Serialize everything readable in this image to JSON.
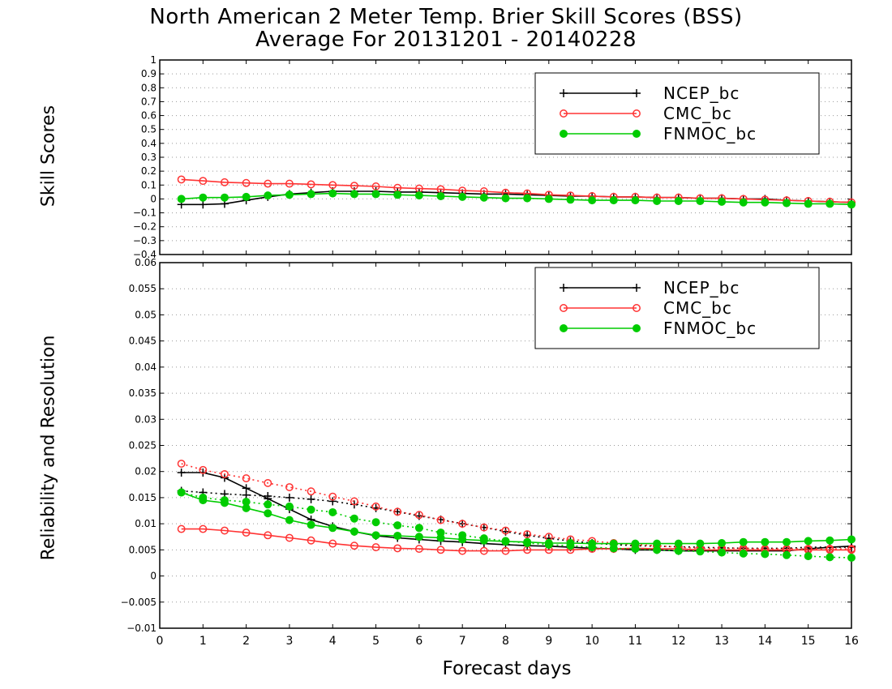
{
  "title_line1": "North American 2 Meter Temp. Brier Skill Scores (BSS)",
  "title_line2": "Average For 20131201 - 20140228",
  "xlabel": "Forecast days",
  "chart_data": [
    {
      "type": "line",
      "ylabel": "Skill Scores",
      "xlim": [
        0,
        16
      ],
      "ylim": [
        -0.4,
        1
      ],
      "grid": true,
      "legend_position": "top-right",
      "x_ticks": [
        0,
        1,
        2,
        3,
        4,
        5,
        6,
        7,
        8,
        9,
        10,
        11,
        12,
        13,
        14,
        15,
        16
      ],
      "y_ticks": [
        -0.4,
        -0.3,
        -0.2,
        -0.1,
        0,
        0.1,
        0.2,
        0.3,
        0.4,
        0.5,
        0.6,
        0.7,
        0.8,
        0.9,
        1
      ],
      "x": [
        0.5,
        1,
        1.5,
        2,
        2.5,
        3,
        3.5,
        4,
        4.5,
        5,
        5.5,
        6,
        6.5,
        7,
        7.5,
        8,
        8.5,
        9,
        9.5,
        10,
        10.5,
        11,
        11.5,
        12,
        12.5,
        13,
        13.5,
        14,
        14.5,
        15,
        15.5,
        16
      ],
      "series": [
        {
          "name": "NCEP_bc",
          "color": "#000000",
          "marker": "plus",
          "values": [
            -0.04,
            -0.04,
            -0.035,
            -0.01,
            0.015,
            0.035,
            0.045,
            0.055,
            0.055,
            0.055,
            0.05,
            0.05,
            0.045,
            0.04,
            0.035,
            0.035,
            0.03,
            0.025,
            0.02,
            0.02,
            0.015,
            0.015,
            0.01,
            0.01,
            0.005,
            0.005,
            0.0,
            0.0,
            -0.01,
            -0.015,
            -0.02,
            -0.025
          ]
        },
        {
          "name": "CMC_bc",
          "color": "#ff3333",
          "marker": "open-circle",
          "values": [
            0.14,
            0.13,
            0.12,
            0.115,
            0.11,
            0.11,
            0.105,
            0.1,
            0.095,
            0.09,
            0.08,
            0.075,
            0.07,
            0.06,
            0.055,
            0.045,
            0.04,
            0.03,
            0.025,
            0.02,
            0.015,
            0.015,
            0.01,
            0.01,
            0.005,
            0.005,
            0.0,
            -0.005,
            -0.01,
            -0.015,
            -0.02,
            -0.025
          ]
        },
        {
          "name": "FNMOC_bc",
          "color": "#00cc00",
          "marker": "filled-circle",
          "values": [
            0.0,
            0.01,
            0.01,
            0.015,
            0.025,
            0.03,
            0.035,
            0.04,
            0.035,
            0.035,
            0.03,
            0.025,
            0.02,
            0.015,
            0.01,
            0.005,
            0.005,
            0.0,
            -0.005,
            -0.01,
            -0.01,
            -0.01,
            -0.015,
            -0.015,
            -0.015,
            -0.02,
            -0.025,
            -0.025,
            -0.03,
            -0.035,
            -0.035,
            -0.04
          ]
        }
      ]
    },
    {
      "type": "line",
      "ylabel": "Reliability and Resolution",
      "xlim": [
        0,
        16
      ],
      "ylim": [
        -0.01,
        0.06
      ],
      "grid": true,
      "legend_position": "top-right",
      "x_ticks": [
        0,
        1,
        2,
        3,
        4,
        5,
        6,
        7,
        8,
        9,
        10,
        11,
        12,
        13,
        14,
        15,
        16
      ],
      "y_ticks": [
        -0.01,
        -0.005,
        0,
        0.005,
        0.01,
        0.015,
        0.02,
        0.025,
        0.03,
        0.035,
        0.04,
        0.045,
        0.05,
        0.055,
        0.06
      ],
      "x": [
        0.5,
        1,
        1.5,
        2,
        2.5,
        3,
        3.5,
        4,
        4.5,
        5,
        5.5,
        6,
        6.5,
        7,
        7.5,
        8,
        8.5,
        9,
        9.5,
        10,
        10.5,
        11,
        11.5,
        12,
        12.5,
        13,
        13.5,
        14,
        14.5,
        15,
        15.5,
        16
      ],
      "series": [
        {
          "name": "NCEP_bc",
          "color": "#000000",
          "marker": "plus",
          "dash": "solid",
          "values": [
            0.0198,
            0.0198,
            0.0188,
            0.0168,
            0.0148,
            0.0128,
            0.0108,
            0.0095,
            0.0085,
            0.0077,
            0.0073,
            0.007,
            0.0067,
            0.0065,
            0.0062,
            0.006,
            0.0058,
            0.0057,
            0.0055,
            0.0053,
            0.0052,
            0.005,
            0.005,
            0.0048,
            0.0048,
            0.0048,
            0.0048,
            0.0048,
            0.0048,
            0.0052,
            0.0055,
            0.0057
          ]
        },
        {
          "name": "NCEP_bc",
          "color": "#000000",
          "marker": "plus",
          "dash": "dotted",
          "values": [
            0.0163,
            0.016,
            0.0157,
            0.0155,
            0.0153,
            0.015,
            0.0147,
            0.0143,
            0.0137,
            0.013,
            0.0123,
            0.0115,
            0.0108,
            0.01,
            0.0093,
            0.0085,
            0.0078,
            0.0072,
            0.0067,
            0.0063,
            0.006,
            0.0058,
            0.0057,
            0.0056,
            0.0055,
            0.0054,
            0.0053,
            0.0053,
            0.0053,
            0.0055,
            0.0055,
            0.0055
          ]
        },
        {
          "name": "CMC_bc",
          "color": "#ff3333",
          "marker": "open-circle",
          "dash": "solid",
          "values": [
            0.009,
            0.009,
            0.0087,
            0.0083,
            0.0078,
            0.0073,
            0.0068,
            0.0062,
            0.0058,
            0.0055,
            0.0053,
            0.0052,
            0.005,
            0.0048,
            0.0048,
            0.0048,
            0.005,
            0.005,
            0.005,
            0.0052,
            0.0052,
            0.0053,
            0.0052,
            0.0052,
            0.005,
            0.005,
            0.005,
            0.005,
            0.005,
            0.005,
            0.005,
            0.005
          ]
        },
        {
          "name": "CMC_bc",
          "color": "#ff3333",
          "marker": "open-circle",
          "dash": "dotted",
          "values": [
            0.0215,
            0.0203,
            0.0195,
            0.0187,
            0.0178,
            0.017,
            0.0162,
            0.0152,
            0.0143,
            0.0133,
            0.0123,
            0.0117,
            0.0107,
            0.01,
            0.0093,
            0.0087,
            0.008,
            0.0075,
            0.007,
            0.0067,
            0.0063,
            0.006,
            0.0058,
            0.0055,
            0.0053,
            0.0053,
            0.0053,
            0.0052,
            0.0052,
            0.0052,
            0.0052,
            0.0052
          ]
        },
        {
          "name": "FNMOC_bc",
          "color": "#00cc00",
          "marker": "filled-circle",
          "dash": "solid",
          "values": [
            0.016,
            0.0145,
            0.014,
            0.013,
            0.012,
            0.0107,
            0.0098,
            0.0092,
            0.0085,
            0.0078,
            0.0077,
            0.0075,
            0.0073,
            0.007,
            0.0068,
            0.0066,
            0.0065,
            0.0063,
            0.0063,
            0.0062,
            0.0062,
            0.0062,
            0.0062,
            0.0062,
            0.0062,
            0.0063,
            0.0065,
            0.0065,
            0.0065,
            0.0067,
            0.0068,
            0.007
          ]
        },
        {
          "name": "FNMOC_bc",
          "color": "#00cc00",
          "marker": "filled-circle",
          "dash": "dotted",
          "values": [
            0.016,
            0.015,
            0.0145,
            0.0142,
            0.0137,
            0.0133,
            0.0127,
            0.0122,
            0.011,
            0.0103,
            0.0097,
            0.0092,
            0.0083,
            0.0078,
            0.0072,
            0.0067,
            0.0063,
            0.006,
            0.0058,
            0.0055,
            0.0053,
            0.0052,
            0.005,
            0.0048,
            0.0047,
            0.0045,
            0.0043,
            0.0042,
            0.004,
            0.0038,
            0.0036,
            0.0035
          ]
        }
      ]
    }
  ]
}
